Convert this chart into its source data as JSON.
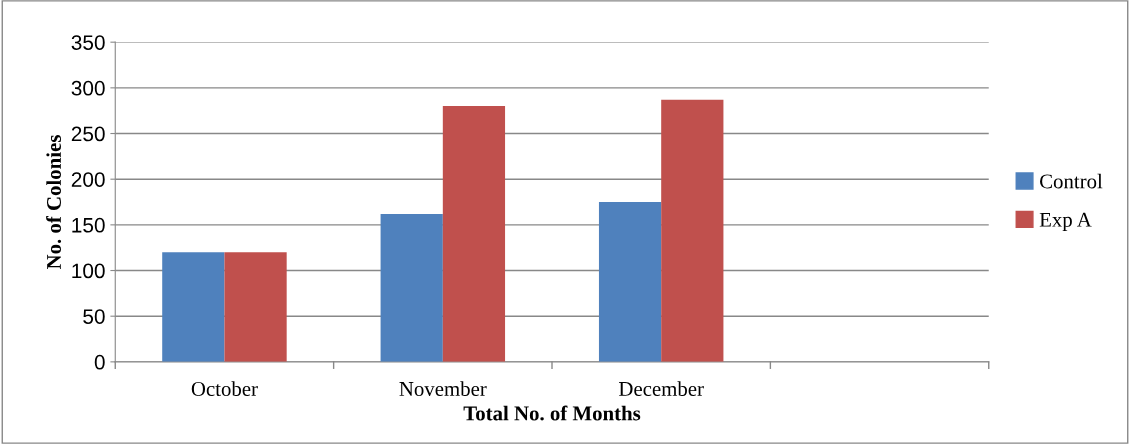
{
  "chart_data": {
    "type": "bar",
    "xlabel": "Total No. of Months",
    "ylabel": "No. of Colonies",
    "categories": [
      "October",
      "November",
      "December",
      null
    ],
    "series": [
      {
        "name": "Control",
        "color": "#4f81bd",
        "values": [
          120,
          162,
          175,
          null
        ]
      },
      {
        "name": "Exp A",
        "color": "#c0504d",
        "values": [
          120,
          280,
          287,
          null
        ]
      }
    ],
    "ylim": [
      0,
      350
    ],
    "yticks": [
      0,
      50,
      100,
      150,
      200,
      250,
      300,
      350
    ],
    "grid": "y",
    "legend": "right"
  }
}
